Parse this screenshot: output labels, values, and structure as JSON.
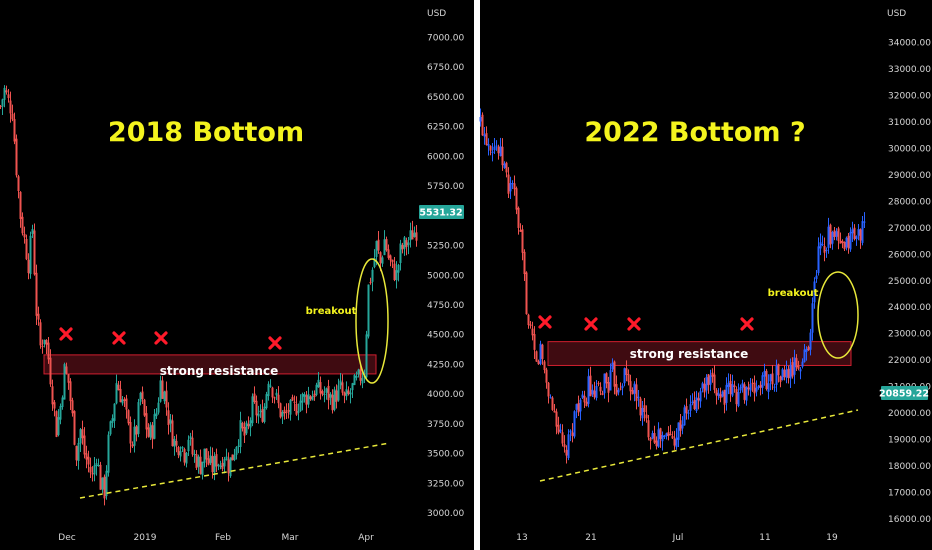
{
  "colors": {
    "background": "#000000",
    "up_left": "#26a69a",
    "down_left": "#ef5350",
    "up_right": "#2962ff",
    "down_right": "#ef5350",
    "title": "#f4f41e",
    "resistance_fill": "#4a0d14",
    "resistance_border": "#d11f2f",
    "cross": "#ff1a2a",
    "trendline": "#e8e83a",
    "tag_left": "#26a69a",
    "tag_right": "#26a69a"
  },
  "chart_data": [
    {
      "type": "candlestick",
      "title": "2018 Bottom",
      "currency_label": "USD",
      "y_ticks": [
        "7000.00",
        "6750.00",
        "6500.00",
        "6250.00",
        "6000.00",
        "5750.00",
        "5500.00",
        "5250.00",
        "5000.00",
        "4750.00",
        "4500.00",
        "4250.00",
        "4000.00",
        "3750.00",
        "3500.00",
        "3250.00",
        "3000.00"
      ],
      "ylim": [
        2950,
        7150
      ],
      "x_labels": [
        "Dec",
        "2019",
        "Feb",
        "Mar",
        "Apr"
      ],
      "last_price": "5531.32",
      "annotations": {
        "resistance_label": "strong resistance",
        "breakout_label": "breakout",
        "resistance_zone": [
          4170,
          4330
        ],
        "cross_marks": 4
      },
      "price_path": [
        [
          0,
          6420
        ],
        [
          4,
          6560
        ],
        [
          8,
          6460
        ],
        [
          12,
          6380
        ],
        [
          16,
          5900
        ],
        [
          20,
          5500
        ],
        [
          24,
          5300
        ],
        [
          28,
          5100
        ],
        [
          32,
          5400
        ],
        [
          36,
          4700
        ],
        [
          40,
          4400
        ],
        [
          44,
          4500
        ],
        [
          48,
          4300
        ],
        [
          52,
          4000
        ],
        [
          56,
          3700
        ],
        [
          60,
          3900
        ],
        [
          64,
          4200
        ],
        [
          68,
          4100
        ],
        [
          72,
          3800
        ],
        [
          76,
          3500
        ],
        [
          80,
          3700
        ],
        [
          84,
          3500
        ],
        [
          88,
          3400
        ],
        [
          92,
          3300
        ],
        [
          96,
          3500
        ],
        [
          100,
          3250
        ],
        [
          104,
          3180
        ],
        [
          108,
          3600
        ],
        [
          112,
          3800
        ],
        [
          116,
          4100
        ],
        [
          120,
          4000
        ],
        [
          124,
          3900
        ],
        [
          128,
          3700
        ],
        [
          132,
          3600
        ],
        [
          136,
          3700
        ],
        [
          140,
          4000
        ],
        [
          144,
          3800
        ],
        [
          148,
          3650
        ],
        [
          152,
          3700
        ],
        [
          156,
          3850
        ],
        [
          160,
          4100
        ],
        [
          164,
          4000
        ],
        [
          168,
          3800
        ],
        [
          172,
          3650
        ],
        [
          176,
          3550
        ],
        [
          180,
          3600
        ],
        [
          184,
          3500
        ],
        [
          188,
          3650
        ],
        [
          192,
          3500
        ],
        [
          196,
          3450
        ],
        [
          200,
          3400
        ],
        [
          204,
          3500
        ],
        [
          208,
          3420
        ],
        [
          212,
          3380
        ],
        [
          216,
          3450
        ],
        [
          220,
          3420
        ],
        [
          224,
          3500
        ],
        [
          228,
          3400
        ],
        [
          232,
          3480
        ],
        [
          236,
          3600
        ],
        [
          240,
          3700
        ],
        [
          244,
          3650
        ],
        [
          248,
          3700
        ],
        [
          252,
          3900
        ],
        [
          256,
          3850
        ],
        [
          260,
          3800
        ],
        [
          264,
          3900
        ],
        [
          268,
          4150
        ],
        [
          272,
          4050
        ],
        [
          276,
          3950
        ],
        [
          280,
          3850
        ],
        [
          284,
          3800
        ],
        [
          288,
          3870
        ],
        [
          292,
          3860
        ],
        [
          296,
          3900
        ],
        [
          300,
          3950
        ],
        [
          304,
          3970
        ],
        [
          308,
          3990
        ],
        [
          312,
          4000
        ],
        [
          316,
          4050
        ],
        [
          320,
          4020
        ],
        [
          324,
          4000
        ],
        [
          328,
          3990
        ],
        [
          332,
          3950
        ],
        [
          336,
          4000
        ],
        [
          340,
          4050
        ],
        [
          344,
          3950
        ],
        [
          348,
          3980
        ],
        [
          352,
          4050
        ],
        [
          356,
          4100
        ],
        [
          360,
          4150
        ],
        [
          364,
          4200
        ],
        [
          368,
          4900
        ],
        [
          372,
          5050
        ],
        [
          376,
          5250
        ],
        [
          380,
          5100
        ],
        [
          384,
          5300
        ],
        [
          388,
          5150
        ],
        [
          392,
          5050
        ],
        [
          396,
          5000
        ],
        [
          400,
          5200
        ],
        [
          404,
          5250
        ],
        [
          408,
          5280
        ],
        [
          412,
          5350
        ],
        [
          416,
          5380
        ]
      ]
    },
    {
      "type": "candlestick",
      "title": "2022 Bottom ?",
      "currency_label": "USD",
      "y_ticks": [
        "34000.00",
        "33000.00",
        "32000.00",
        "31000.00",
        "30000.00",
        "29000.00",
        "28000.00",
        "27000.00",
        "26000.00",
        "25000.00",
        "24000.00",
        "23000.00",
        "22000.00",
        "21000.00",
        "20000.00",
        "19000.00",
        "18000.00",
        "17000.00",
        "16000.00"
      ],
      "ylim": [
        15800,
        34600
      ],
      "x_labels": [
        "13",
        "21",
        "Jul",
        "11",
        "19"
      ],
      "last_price": "20859.22",
      "annotations": {
        "resistance_label": "strong resistance",
        "breakout_label": "breakout",
        "resistance_zone": [
          21800,
          22700
        ],
        "cross_marks": 4
      },
      "price_path": [
        [
          0,
          31000
        ],
        [
          4,
          30600
        ],
        [
          8,
          30300
        ],
        [
          12,
          30200
        ],
        [
          16,
          30100
        ],
        [
          20,
          29700
        ],
        [
          24,
          29300
        ],
        [
          28,
          28500
        ],
        [
          32,
          28800
        ],
        [
          36,
          27500
        ],
        [
          40,
          26500
        ],
        [
          44,
          25000
        ],
        [
          48,
          23200
        ],
        [
          52,
          22600
        ],
        [
          56,
          21800
        ],
        [
          60,
          22400
        ],
        [
          64,
          21600
        ],
        [
          68,
          20800
        ],
        [
          72,
          20200
        ],
        [
          76,
          19800
        ],
        [
          80,
          19000
        ],
        [
          84,
          18400
        ],
        [
          88,
          18800
        ],
        [
          92,
          19500
        ],
        [
          96,
          20300
        ],
        [
          100,
          20500
        ],
        [
          104,
          20100
        ],
        [
          108,
          21200
        ],
        [
          112,
          20500
        ],
        [
          116,
          20800
        ],
        [
          120,
          20600
        ],
        [
          124,
          21300
        ],
        [
          128,
          21100
        ],
        [
          132,
          21500
        ],
        [
          136,
          21000
        ],
        [
          140,
          21200
        ],
        [
          144,
          21500
        ],
        [
          148,
          21200
        ],
        [
          152,
          20900
        ],
        [
          156,
          20600
        ],
        [
          160,
          20200
        ],
        [
          164,
          19800
        ],
        [
          168,
          19400
        ],
        [
          172,
          19300
        ],
        [
          176,
          19100
        ],
        [
          180,
          19100
        ],
        [
          184,
          19000
        ],
        [
          188,
          19200
        ],
        [
          192,
          19000
        ],
        [
          196,
          19300
        ],
        [
          200,
          19600
        ],
        [
          204,
          19900
        ],
        [
          208,
          20100
        ],
        [
          212,
          20300
        ],
        [
          216,
          20400
        ],
        [
          220,
          20800
        ],
        [
          224,
          21000
        ],
        [
          228,
          21100
        ],
        [
          232,
          21000
        ],
        [
          236,
          20900
        ],
        [
          240,
          20700
        ],
        [
          244,
          20700
        ],
        [
          248,
          20800
        ],
        [
          252,
          20900
        ],
        [
          256,
          20700
        ],
        [
          260,
          20800
        ],
        [
          264,
          20900
        ],
        [
          268,
          21000
        ],
        [
          272,
          20800
        ],
        [
          276,
          21000
        ],
        [
          280,
          21100
        ],
        [
          284,
          21300
        ],
        [
          288,
          21200
        ],
        [
          292,
          21300
        ],
        [
          296,
          21500
        ],
        [
          300,
          21400
        ],
        [
          304,
          21400
        ],
        [
          308,
          21500
        ],
        [
          312,
          21600
        ],
        [
          316,
          21900
        ],
        [
          320,
          21700
        ],
        [
          324,
          22200
        ],
        [
          328,
          22700
        ],
        [
          332,
          24000
        ],
        [
          336,
          25500
        ],
        [
          340,
          26700
        ],
        [
          344,
          26200
        ],
        [
          348,
          26900
        ],
        [
          352,
          26500
        ],
        [
          356,
          26700
        ],
        [
          360,
          26200
        ],
        [
          364,
          26100
        ],
        [
          368,
          26500
        ],
        [
          372,
          26800
        ],
        [
          376,
          26600
        ],
        [
          380,
          26900
        ],
        [
          384,
          27000
        ]
      ]
    }
  ]
}
